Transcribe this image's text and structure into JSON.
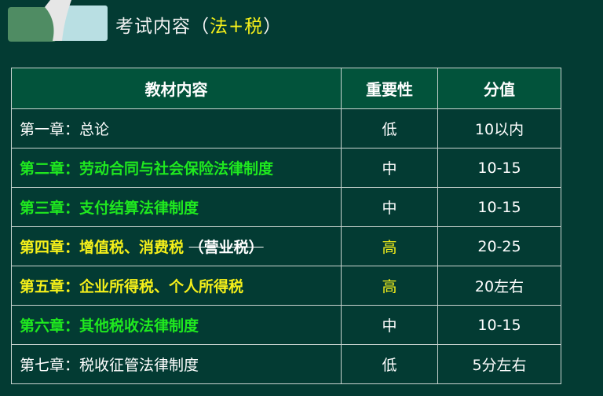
{
  "title": {
    "prefix": "考试内容（",
    "highlight": "法+税",
    "suffix": "）"
  },
  "colors": {
    "background": "#033b33",
    "header": "#02533b",
    "green": "#1fe81f",
    "yellow": "#f5f01a"
  },
  "table": {
    "headers": [
      "教材内容",
      "重要性",
      "分值"
    ],
    "rows": [
      {
        "chapter": "第一章：总论",
        "strike": "",
        "importance": "低",
        "score": "10以内",
        "style": "plain"
      },
      {
        "chapter": "第二章：劳动合同与社会保险法律制度",
        "strike": "",
        "importance": "中",
        "score": "10-15",
        "style": "green"
      },
      {
        "chapter": "第三章：支付结算法律制度",
        "strike": "",
        "importance": "中",
        "score": "10-15",
        "style": "green"
      },
      {
        "chapter": "第四章：增值税、消费税",
        "strike": "（营业税）",
        "importance": "高",
        "score": "20-25",
        "style": "yellow"
      },
      {
        "chapter": "第五章：企业所得税、个人所得税",
        "strike": "",
        "importance": "高",
        "score": "20左右",
        "style": "yellow"
      },
      {
        "chapter": "第六章：其他税收法律制度",
        "strike": "",
        "importance": "中",
        "score": "10-15",
        "style": "green"
      },
      {
        "chapter": "第七章：税收征管法律制度",
        "strike": "",
        "importance": "低",
        "score": "5分左右",
        "style": "plain"
      }
    ]
  }
}
